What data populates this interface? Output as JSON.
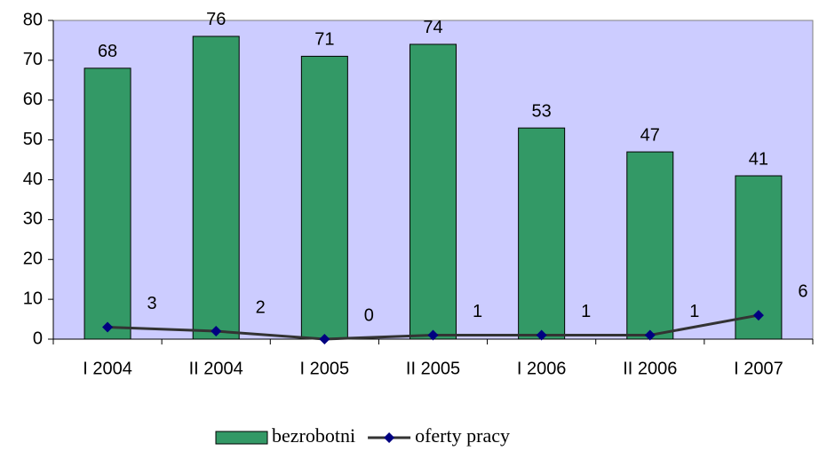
{
  "chart_data": {
    "type": "combo",
    "categories": [
      "I 2004",
      "II 2004",
      "I 2005",
      "II 2005",
      "I 2006",
      "II 2006",
      "I 2007"
    ],
    "series": [
      {
        "name": "bezrobotni",
        "type": "bar",
        "color": "#339966",
        "values": [
          68,
          76,
          71,
          74,
          53,
          47,
          41
        ]
      },
      {
        "name": "oferty pracy",
        "type": "line",
        "color": "#333333",
        "marker_color": "#000080",
        "values": [
          3,
          2,
          0,
          1,
          1,
          1,
          6
        ]
      }
    ],
    "ylim": [
      0,
      80
    ],
    "yticks": [
      0,
      10,
      20,
      30,
      40,
      50,
      60,
      70,
      80
    ],
    "plot_background": "#ccccff",
    "legend": "bottom",
    "grid": false
  }
}
